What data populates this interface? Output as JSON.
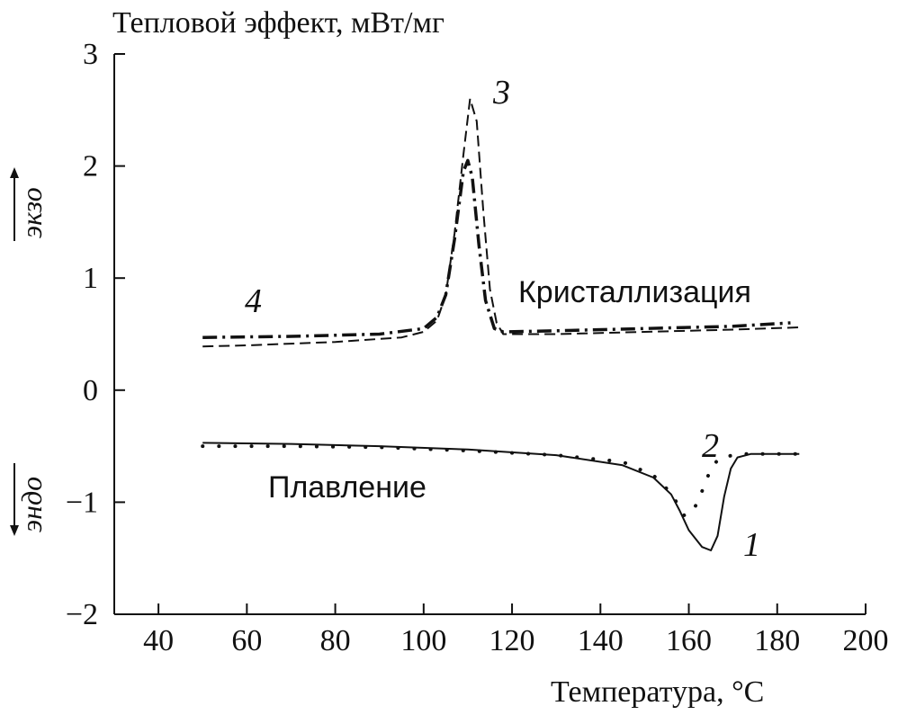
{
  "chart_data": {
    "type": "line",
    "title": "",
    "ylabel": "Тепловой эффект, мВт/мг",
    "xlabel": "Температура, °C",
    "xlim": [
      30,
      200
    ],
    "ylim": [
      -2,
      3
    ],
    "xticks": [
      40,
      60,
      80,
      100,
      120,
      140,
      160,
      180,
      200
    ],
    "yticks": [
      3,
      2,
      1,
      0,
      -1,
      -2
    ],
    "ytick_labels": [
      "3",
      "2",
      "1",
      "0",
      "−1",
      "−2"
    ],
    "grid": false,
    "annotations": {
      "exo": "экзо",
      "endo": "эндо",
      "crystallization": "Кристаллизация",
      "melting": "Плавление"
    },
    "series": [
      {
        "name": "1",
        "style": "solid",
        "points": [
          [
            50,
            -0.47
          ],
          [
            70,
            -0.48
          ],
          [
            90,
            -0.5
          ],
          [
            110,
            -0.53
          ],
          [
            130,
            -0.58
          ],
          [
            145,
            -0.67
          ],
          [
            152,
            -0.78
          ],
          [
            156,
            -0.93
          ],
          [
            158,
            -1.08
          ],
          [
            160,
            -1.25
          ],
          [
            163,
            -1.4
          ],
          [
            165,
            -1.43
          ],
          [
            166.5,
            -1.3
          ],
          [
            168,
            -0.95
          ],
          [
            169.5,
            -0.7
          ],
          [
            171,
            -0.6
          ],
          [
            174,
            -0.57
          ],
          [
            185,
            -0.57
          ]
        ]
      },
      {
        "name": "2",
        "style": "dotted",
        "points": [
          [
            50,
            -0.5
          ],
          [
            70,
            -0.5
          ],
          [
            90,
            -0.51
          ],
          [
            110,
            -0.54
          ],
          [
            130,
            -0.58
          ],
          [
            145,
            -0.64
          ],
          [
            152,
            -0.76
          ],
          [
            156,
            -0.92
          ],
          [
            159,
            -1.12
          ],
          [
            161,
            -1.08
          ],
          [
            163,
            -0.9
          ],
          [
            165,
            -0.7
          ],
          [
            167,
            -0.6
          ],
          [
            172,
            -0.57
          ],
          [
            185,
            -0.57
          ]
        ]
      },
      {
        "name": "3",
        "style": "dashed",
        "points": [
          [
            50,
            0.39
          ],
          [
            60,
            0.4
          ],
          [
            80,
            0.43
          ],
          [
            95,
            0.47
          ],
          [
            100,
            0.52
          ],
          [
            103,
            0.62
          ],
          [
            105,
            0.85
          ],
          [
            107,
            1.4
          ],
          [
            109,
            2.1
          ],
          [
            110.5,
            2.6
          ],
          [
            112,
            2.4
          ],
          [
            113.5,
            1.6
          ],
          [
            115,
            0.9
          ],
          [
            116.5,
            0.6
          ],
          [
            118,
            0.5
          ],
          [
            130,
            0.5
          ],
          [
            150,
            0.52
          ],
          [
            170,
            0.54
          ],
          [
            185,
            0.56
          ]
        ]
      },
      {
        "name": "4",
        "style": "dash-dot",
        "points": [
          [
            50,
            0.47
          ],
          [
            70,
            0.48
          ],
          [
            90,
            0.5
          ],
          [
            100,
            0.55
          ],
          [
            103,
            0.65
          ],
          [
            105,
            0.85
          ],
          [
            107,
            1.35
          ],
          [
            109,
            1.95
          ],
          [
            110,
            2.05
          ],
          [
            111,
            1.9
          ],
          [
            112.5,
            1.3
          ],
          [
            114,
            0.8
          ],
          [
            116,
            0.55
          ],
          [
            118,
            0.52
          ],
          [
            130,
            0.53
          ],
          [
            150,
            0.55
          ],
          [
            170,
            0.57
          ],
          [
            183,
            0.6
          ]
        ]
      }
    ]
  }
}
